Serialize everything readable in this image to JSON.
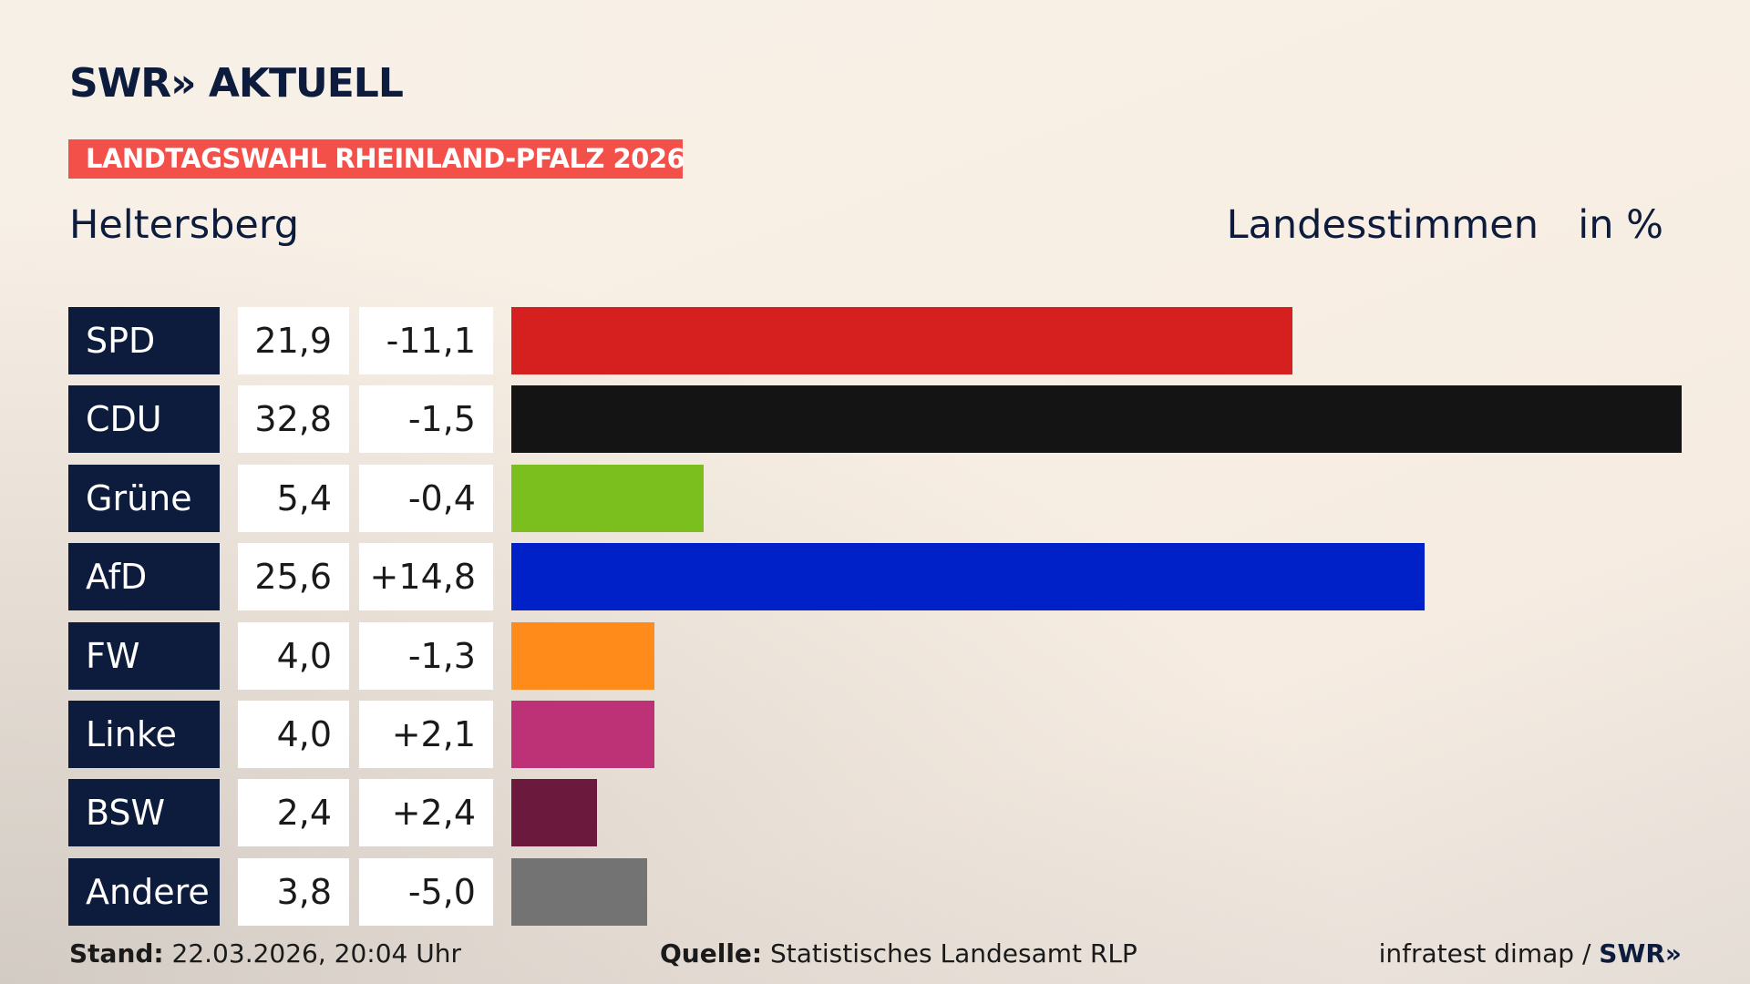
{
  "header": {
    "logo": "SWR» AKTUELL",
    "tag": "LANDTAGSWAHL RHEINLAND-PFALZ 2026"
  },
  "chart_data": {
    "type": "bar",
    "orientation": "horizontal",
    "subtitle": "Heltersberg",
    "title": "Landesstimmen",
    "unit_label": "in %",
    "categories": [
      "SPD",
      "CDU",
      "Grüne",
      "AfD",
      "FW",
      "Linke",
      "BSW",
      "Andere"
    ],
    "values": [
      21.9,
      32.8,
      5.4,
      25.6,
      4.0,
      4.0,
      2.4,
      3.8
    ],
    "value_labels": [
      "21,9",
      "32,8",
      "5,4",
      "25,6",
      "4,0",
      "4,0",
      "2,4",
      "3,8"
    ],
    "changes": [
      -11.1,
      -1.5,
      -0.4,
      14.8,
      -1.3,
      2.1,
      2.4,
      -5.0
    ],
    "change_labels": [
      "-11,1",
      "-1,5",
      "-0,4",
      "+14,8",
      "-1,3",
      "+2,1",
      "+2,4",
      "-5,0"
    ],
    "colors": [
      "#d61f1f",
      "#141414",
      "#7bbf1e",
      "#0020c8",
      "#ff8c1a",
      "#bd3276",
      "#6b1a3e",
      "#737373"
    ]
  },
  "footer": {
    "stand_label": "Stand:",
    "stand": "22.03.2026, 20:04 Uhr",
    "source_label": "Quelle:",
    "source": "Statistisches Landesamt RLP",
    "credit": "infratest dimap /",
    "credit_logo": "SWR»"
  }
}
